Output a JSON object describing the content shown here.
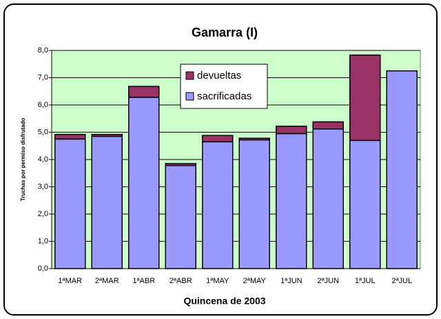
{
  "chart_data": {
    "type": "stacked_bar",
    "title": "Gamarra (I)",
    "x_label": "Quincena de 2003",
    "y_label": "Truchas por permiso disfrutado",
    "categories": [
      "1ªMAR",
      "2ªMAR",
      "1ªABR",
      "2ªABR",
      "1ªMAY",
      "2ªMAY",
      "1ªJUN",
      "2ªJUN",
      "1ªJUL",
      "2ªJUL"
    ],
    "series": [
      {
        "name": "sacrificadas",
        "color": "#9999ff",
        "values": [
          4.75,
          4.85,
          6.28,
          3.78,
          4.65,
          4.72,
          4.95,
          5.12,
          4.7,
          7.25
        ]
      },
      {
        "name": "devueltas",
        "color": "#993366",
        "values": [
          0.17,
          0.07,
          0.4,
          0.07,
          0.23,
          0.06,
          0.27,
          0.26,
          3.13,
          0
        ]
      }
    ],
    "ylim": [
      0,
      8
    ],
    "yticks": [
      {
        "value": 0,
        "label": "0,0"
      },
      {
        "value": 1,
        "label": "1,0"
      },
      {
        "value": 2,
        "label": "2,0"
      },
      {
        "value": 3,
        "label": "3,0"
      },
      {
        "value": 4,
        "label": "4,0"
      },
      {
        "value": 5,
        "label": "5,0"
      },
      {
        "value": 6,
        "label": "6,0"
      },
      {
        "value": 7,
        "label": "7,0"
      },
      {
        "value": 8,
        "label": "8,0"
      }
    ],
    "grid": true,
    "plot_background": "#ccffcc"
  }
}
